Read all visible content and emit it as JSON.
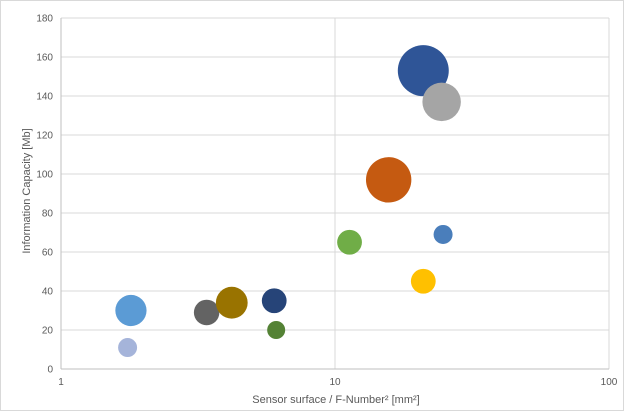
{
  "chart_data": {
    "type": "scatter",
    "subtype": "bubble",
    "title": "",
    "xlabel": "Sensor surface / F-Number² [mm²]",
    "ylabel": "Information Capacity [Mb]",
    "xscale": "log",
    "xlim": [
      1,
      100
    ],
    "ylim": [
      0,
      180
    ],
    "xticks": [
      1,
      10,
      100
    ],
    "xtick_labels": [
      "1",
      "10",
      "100"
    ],
    "yticks": [
      0,
      20,
      40,
      60,
      80,
      100,
      120,
      140,
      160,
      180
    ],
    "ytick_labels": [
      "0",
      "20",
      "40",
      "60",
      "80",
      "100",
      "120",
      "140",
      "160",
      "180"
    ],
    "grid": true,
    "legend": "none",
    "points": [
      {
        "x": 1.75,
        "y": 11,
        "size": 1.0,
        "color": "#a5b4da"
      },
      {
        "x": 1.8,
        "y": 30,
        "size": 2.7,
        "color": "#5b9bd5"
      },
      {
        "x": 3.4,
        "y": 29,
        "size": 1.8,
        "color": "#636363"
      },
      {
        "x": 4.2,
        "y": 34,
        "size": 2.8,
        "color": "#997300"
      },
      {
        "x": 6.0,
        "y": 35,
        "size": 1.7,
        "color": "#264478"
      },
      {
        "x": 6.1,
        "y": 20,
        "size": 0.9,
        "color": "#548235"
      },
      {
        "x": 11.3,
        "y": 65,
        "size": 1.7,
        "color": "#70ad47"
      },
      {
        "x": 15.7,
        "y": 97,
        "size": 5.7,
        "color": "#c55a11"
      },
      {
        "x": 21.0,
        "y": 45,
        "size": 1.7,
        "color": "#ffc000"
      },
      {
        "x": 21.0,
        "y": 153,
        "size": 7.2,
        "color": "#2f5597"
      },
      {
        "x": 24.5,
        "y": 137,
        "size": 4.1,
        "color": "#a5a5a5"
      },
      {
        "x": 24.8,
        "y": 69,
        "size": 1.0,
        "color": "#4a7ebb"
      }
    ]
  }
}
